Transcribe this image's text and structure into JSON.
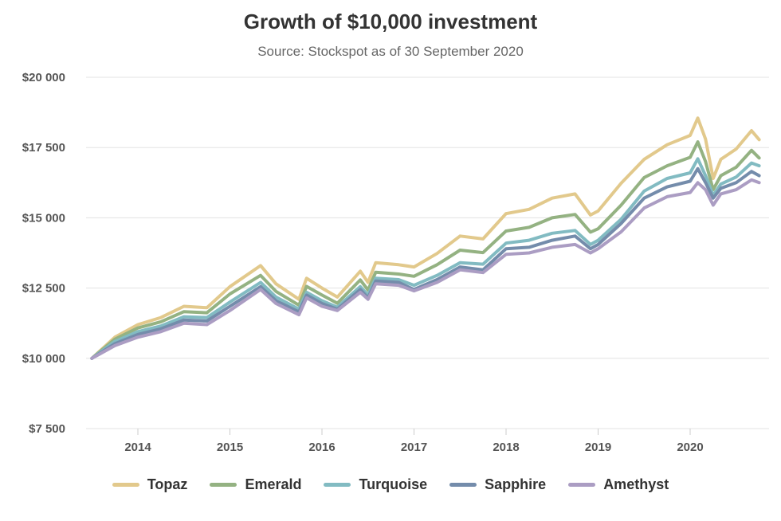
{
  "chart_data": {
    "type": "line",
    "title": "Growth of $10,000 investment",
    "subtitle": "Source: Stockspot as of 30 September 2020",
    "xlabel": "",
    "ylabel": "",
    "ylim": [
      7500,
      20000
    ],
    "yticks": [
      7500,
      10000,
      12500,
      15000,
      17500,
      20000
    ],
    "ytick_labels": [
      "$7 500",
      "$10 000",
      "$12 500",
      "$15 000",
      "$17 500",
      "$20 000"
    ],
    "xtick_labels": [
      "2014",
      "2015",
      "2016",
      "2017",
      "2018",
      "2019",
      "2020"
    ],
    "grid": true,
    "legend": "bottom",
    "x": [
      "2013-06",
      "2013-09",
      "2013-12",
      "2014-03",
      "2014-06",
      "2014-09",
      "2014-12",
      "2015-04",
      "2015-06",
      "2015-09",
      "2015-10",
      "2015-12",
      "2016-02",
      "2016-05",
      "2016-06",
      "2016-07",
      "2016-10",
      "2016-12",
      "2017-03",
      "2017-06",
      "2017-09",
      "2017-12",
      "2018-03",
      "2018-06",
      "2018-09",
      "2018-11",
      "2018-12",
      "2019-03",
      "2019-06",
      "2019-09",
      "2019-12",
      "2020-01",
      "2020-02",
      "2020-03",
      "2020-04",
      "2020-06",
      "2020-08",
      "2020-09"
    ],
    "series": [
      {
        "name": "Topaz",
        "color": "#e2c98c",
        "values": [
          10000,
          10750,
          11200,
          11450,
          11850,
          11800,
          12550,
          13300,
          12650,
          12100,
          12850,
          12500,
          12180,
          13100,
          12700,
          13400,
          13330,
          13250,
          13730,
          14350,
          14250,
          15150,
          15300,
          15700,
          15850,
          15100,
          15240,
          16230,
          17080,
          17600,
          17930,
          18550,
          17800,
          16400,
          17080,
          17450,
          18100,
          17780
        ]
      },
      {
        "name": "Emerald",
        "color": "#94b282",
        "values": [
          10000,
          10680,
          11080,
          11300,
          11660,
          11620,
          12290,
          12950,
          12380,
          11890,
          12560,
          12250,
          11960,
          12790,
          12430,
          13060,
          13000,
          12920,
          13330,
          13850,
          13760,
          14530,
          14660,
          15000,
          15120,
          14490,
          14610,
          15450,
          16430,
          16850,
          17150,
          17700,
          17000,
          16000,
          16500,
          16800,
          17400,
          17130
        ]
      },
      {
        "name": "Turquoise",
        "color": "#82bbc2",
        "values": [
          10000,
          10600,
          10950,
          11150,
          11480,
          11450,
          12000,
          12700,
          12180,
          11750,
          12350,
          12050,
          11820,
          12550,
          12250,
          12850,
          12800,
          12600,
          12950,
          13400,
          13350,
          14100,
          14200,
          14450,
          14550,
          14050,
          14200,
          14950,
          15950,
          16400,
          16600,
          17100,
          16500,
          15800,
          16200,
          16450,
          16950,
          16850
        ]
      },
      {
        "name": "Sapphire",
        "color": "#748cab",
        "values": [
          10000,
          10520,
          10850,
          11050,
          11360,
          11330,
          11850,
          12550,
          12050,
          11650,
          12250,
          11950,
          11750,
          12450,
          12150,
          12750,
          12700,
          12450,
          12800,
          13250,
          13150,
          13900,
          13950,
          14200,
          14350,
          13900,
          14050,
          14800,
          15700,
          16100,
          16300,
          16750,
          16250,
          15700,
          16050,
          16250,
          16650,
          16500
        ]
      },
      {
        "name": "Amethyst",
        "color": "#ab9dc3",
        "values": [
          10000,
          10450,
          10750,
          10950,
          11250,
          11200,
          11700,
          12450,
          11950,
          11550,
          12150,
          11850,
          11700,
          12350,
          12100,
          12650,
          12600,
          12400,
          12700,
          13150,
          13050,
          13700,
          13750,
          13950,
          14050,
          13750,
          13900,
          14500,
          15350,
          15750,
          15900,
          16250,
          16000,
          15450,
          15850,
          16000,
          16350,
          16250
        ]
      }
    ]
  }
}
